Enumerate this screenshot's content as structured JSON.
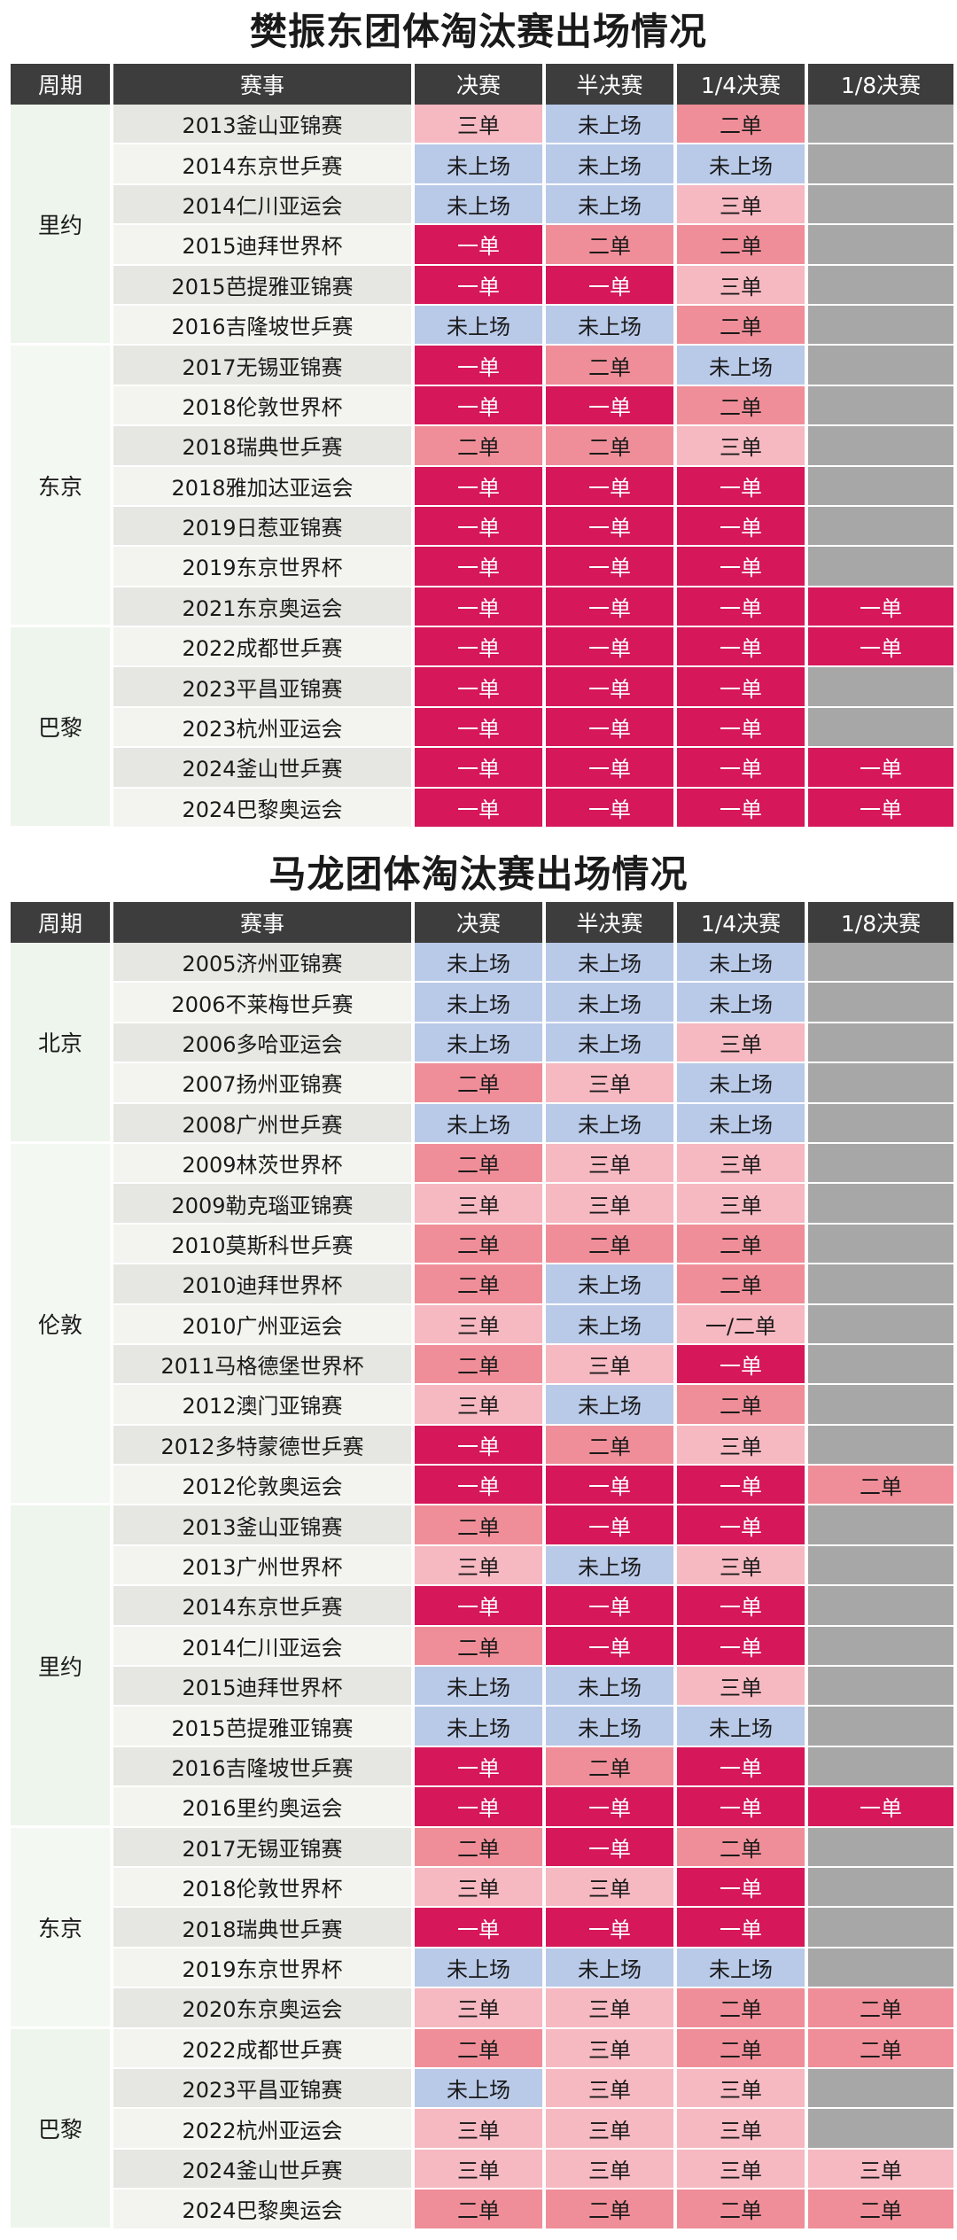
{
  "colors": {
    "一单": "#d6175a",
    "二单": "#ef8e98",
    "三单": "#f6b8c1",
    "未上场": "#b9c9e8",
    "": "#a7a7a7",
    "header": "#3d3d3d"
  },
  "tables": [
    {
      "title": "樊振东团体淘汰赛出场情况",
      "headers": [
        "周期",
        "赛事",
        "决赛",
        "半决赛",
        "1/4决赛",
        "1/8决赛"
      ],
      "periods": [
        {
          "label": "里约",
          "rows": [
            {
              "event": "2013釜山亚锦赛",
              "cells": [
                "三单",
                "未上场",
                "二单",
                ""
              ]
            },
            {
              "event": "2014东京世乒赛",
              "cells": [
                "未上场",
                "未上场",
                "未上场",
                ""
              ]
            },
            {
              "event": "2014仁川亚运会",
              "cells": [
                "未上场",
                "未上场",
                "三单",
                ""
              ]
            },
            {
              "event": "2015迪拜世界杯",
              "cells": [
                "一单",
                "二单",
                "二单",
                ""
              ]
            },
            {
              "event": "2015芭提雅亚锦赛",
              "cells": [
                "一单",
                "一单",
                "三单",
                ""
              ]
            },
            {
              "event": "2016吉隆坡世乒赛",
              "cells": [
                "未上场",
                "未上场",
                "二单",
                ""
              ]
            }
          ]
        },
        {
          "label": "东京",
          "rows": [
            {
              "event": "2017无锡亚锦赛",
              "cells": [
                "一单",
                "二单",
                "未上场",
                ""
              ]
            },
            {
              "event": "2018伦敦世界杯",
              "cells": [
                "一单",
                "一单",
                "二单",
                ""
              ]
            },
            {
              "event": "2018瑞典世乒赛",
              "cells": [
                "二单",
                "二单",
                "三单",
                ""
              ]
            },
            {
              "event": "2018雅加达亚运会",
              "cells": [
                "一单",
                "一单",
                "一单",
                ""
              ]
            },
            {
              "event": "2019日惹亚锦赛",
              "cells": [
                "一单",
                "一单",
                "一单",
                ""
              ]
            },
            {
              "event": "2019东京世界杯",
              "cells": [
                "一单",
                "一单",
                "一单",
                ""
              ]
            },
            {
              "event": "2021东京奥运会",
              "cells": [
                "一单",
                "一单",
                "一单",
                "一单"
              ]
            }
          ]
        },
        {
          "label": "巴黎",
          "rows": [
            {
              "event": "2022成都世乒赛",
              "cells": [
                "一单",
                "一单",
                "一单",
                "一单"
              ]
            },
            {
              "event": "2023平昌亚锦赛",
              "cells": [
                "一单",
                "一单",
                "一单",
                ""
              ]
            },
            {
              "event": "2023杭州亚运会",
              "cells": [
                "一单",
                "一单",
                "一单",
                ""
              ]
            },
            {
              "event": "2024釜山世乒赛",
              "cells": [
                "一单",
                "一单",
                "一单",
                "一单"
              ]
            },
            {
              "event": "2024巴黎奥运会",
              "cells": [
                "一单",
                "一单",
                "一单",
                "一单"
              ]
            }
          ]
        }
      ]
    },
    {
      "title": "马龙团体淘汰赛出场情况",
      "headers": [
        "周期",
        "赛事",
        "决赛",
        "半决赛",
        "1/4决赛",
        "1/8决赛"
      ],
      "periods": [
        {
          "label": "北京",
          "rows": [
            {
              "event": "2005济州亚锦赛",
              "cells": [
                "未上场",
                "未上场",
                "未上场",
                ""
              ]
            },
            {
              "event": "2006不莱梅世乒赛",
              "cells": [
                "未上场",
                "未上场",
                "未上场",
                ""
              ]
            },
            {
              "event": "2006多哈亚运会",
              "cells": [
                "未上场",
                "未上场",
                "三单",
                ""
              ]
            },
            {
              "event": "2007扬州亚锦赛",
              "cells": [
                "二单",
                "三单",
                "未上场",
                ""
              ]
            },
            {
              "event": "2008广州世乒赛",
              "cells": [
                "未上场",
                "未上场",
                "未上场",
                ""
              ]
            }
          ]
        },
        {
          "label": "伦敦",
          "rows": [
            {
              "event": "2009林茨世界杯",
              "cells": [
                "二单",
                "三单",
                "三单",
                ""
              ]
            },
            {
              "event": "2009勒克瑙亚锦赛",
              "cells": [
                "三单",
                "三单",
                "三单",
                ""
              ]
            },
            {
              "event": "2010莫斯科世乒赛",
              "cells": [
                "二单",
                "二单",
                "二单",
                ""
              ]
            },
            {
              "event": "2010迪拜世界杯",
              "cells": [
                "二单",
                "未上场",
                "二单",
                ""
              ]
            },
            {
              "event": "2010广州亚运会",
              "cells": [
                "三单",
                "未上场",
                "一/二单",
                ""
              ]
            },
            {
              "event": "2011马格德堡世界杯",
              "cells": [
                "二单",
                "三单",
                "一单",
                ""
              ]
            },
            {
              "event": "2012澳门亚锦赛",
              "cells": [
                "三单",
                "未上场",
                "二单",
                ""
              ]
            },
            {
              "event": "2012多特蒙德世乒赛",
              "cells": [
                "一单",
                "二单",
                "三单",
                ""
              ]
            },
            {
              "event": "2012伦敦奥运会",
              "cells": [
                "一单",
                "一单",
                "一单",
                "二单"
              ]
            }
          ]
        },
        {
          "label": "里约",
          "rows": [
            {
              "event": "2013釜山亚锦赛",
              "cells": [
                "二单",
                "一单",
                "一单",
                ""
              ]
            },
            {
              "event": "2013广州世界杯",
              "cells": [
                "三单",
                "未上场",
                "三单",
                ""
              ]
            },
            {
              "event": "2014东京世乒赛",
              "cells": [
                "一单",
                "一单",
                "一单",
                ""
              ]
            },
            {
              "event": "2014仁川亚运会",
              "cells": [
                "二单",
                "一单",
                "一单",
                ""
              ]
            },
            {
              "event": "2015迪拜世界杯",
              "cells": [
                "未上场",
                "未上场",
                "三单",
                ""
              ]
            },
            {
              "event": "2015芭提雅亚锦赛",
              "cells": [
                "未上场",
                "未上场",
                "未上场",
                ""
              ]
            },
            {
              "event": "2016吉隆坡世乒赛",
              "cells": [
                "一单",
                "二单",
                "一单",
                ""
              ]
            },
            {
              "event": "2016里约奥运会",
              "cells": [
                "一单",
                "一单",
                "一单",
                "一单"
              ]
            }
          ]
        },
        {
          "label": "东京",
          "rows": [
            {
              "event": "2017无锡亚锦赛",
              "cells": [
                "二单",
                "一单",
                "二单",
                ""
              ]
            },
            {
              "event": "2018伦敦世界杯",
              "cells": [
                "三单",
                "三单",
                "一单",
                ""
              ]
            },
            {
              "event": "2018瑞典世乒赛",
              "cells": [
                "一单",
                "一单",
                "一单",
                ""
              ]
            },
            {
              "event": "2019东京世界杯",
              "cells": [
                "未上场",
                "未上场",
                "未上场",
                ""
              ]
            },
            {
              "event": "2020东京奥运会",
              "cells": [
                "三单",
                "三单",
                "二单",
                "二单"
              ]
            }
          ]
        },
        {
          "label": "巴黎",
          "rows": [
            {
              "event": "2022成都世乒赛",
              "cells": [
                "二单",
                "三单",
                "二单",
                "二单"
              ]
            },
            {
              "event": "2023平昌亚锦赛",
              "cells": [
                "未上场",
                "三单",
                "三单",
                ""
              ]
            },
            {
              "event": "2022杭州亚运会",
              "cells": [
                "三单",
                "三单",
                "三单",
                ""
              ]
            },
            {
              "event": "2024釜山世乒赛",
              "cells": [
                "三单",
                "三单",
                "三单",
                "三单"
              ]
            },
            {
              "event": "2024巴黎奥运会",
              "cells": [
                "二单",
                "二单",
                "二单",
                "二单"
              ]
            }
          ]
        }
      ]
    }
  ]
}
